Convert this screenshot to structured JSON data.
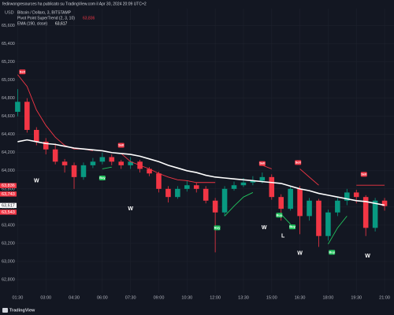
{
  "header": "fedirwongresources ha publicato su TradingView.com il Apr 30, 2024 20:09 UTC+2",
  "footer": "TradingView",
  "chart_data": {
    "type": "candlestick",
    "title": "Bitcoin / Dollaro, 3, BITSTAMP",
    "y_unit": "USD",
    "x": [
      1.5,
      2,
      2.5,
      3,
      3.5,
      4,
      4.5,
      5,
      5.5,
      6,
      6.5,
      7,
      7.5,
      8,
      8.5,
      9,
      9.5,
      10,
      10.5,
      11,
      11.5,
      12,
      12.5,
      13,
      13.5,
      14,
      14.5,
      15,
      15.5,
      16,
      16.5,
      17,
      17.5,
      18,
      18.5,
      19,
      19.5,
      20,
      20.5,
      21
    ],
    "open": [
      64650,
      64760,
      64450,
      64320,
      64235,
      64100,
      64060,
      63930,
      64060,
      64100,
      64150,
      64100,
      64060,
      64100,
      64020,
      63970,
      63800,
      63710,
      63800,
      63840,
      63800,
      63670,
      63540,
      63800,
      63840,
      63870,
      63890,
      63930,
      63710,
      63580,
      63800,
      63500,
      63670,
      63280,
      63540,
      63670,
      63760,
      63710,
      63370,
      63670
    ],
    "high": [
      64900,
      64800,
      64480,
      64360,
      64300,
      64130,
      64090,
      64090,
      64140,
      64200,
      64180,
      64120,
      64150,
      64120,
      64040,
      63990,
      63830,
      63830,
      63890,
      63870,
      63830,
      63700,
      63830,
      63880,
      63920,
      63940,
      63980,
      63960,
      63740,
      63830,
      63830,
      63700,
      63690,
      63570,
      63700,
      63800,
      63790,
      63730,
      63700,
      63700
    ],
    "low": [
      64600,
      64420,
      64280,
      64180,
      64070,
      63980,
      63800,
      63900,
      64030,
      64070,
      64060,
      64020,
      64020,
      63980,
      63940,
      63760,
      63650,
      63690,
      63770,
      63760,
      63640,
      63100,
      63500,
      63780,
      63820,
      63840,
      63860,
      63680,
      63450,
      63560,
      63300,
      63450,
      63160,
      63230,
      63500,
      63620,
      63640,
      63280,
      63330,
      63560
    ],
    "close": [
      64760,
      64450,
      64320,
      64235,
      64100,
      64060,
      63930,
      64060,
      64100,
      64150,
      64100,
      64060,
      64100,
      64020,
      63970,
      63800,
      63710,
      63800,
      63840,
      63800,
      63670,
      63540,
      63800,
      63840,
      63870,
      63890,
      63930,
      63710,
      63580,
      63800,
      63500,
      63670,
      63280,
      63540,
      63670,
      63760,
      63710,
      63370,
      63670,
      63610
    ],
    "up_color": "#089981",
    "down_color": "#f23645",
    "series": [
      {
        "name": "Pivot Point SuperTrend (2, 3, 10)",
        "value_label": "63,836",
        "colors": [
          "#f23645",
          "#22c55e"
        ],
        "upper": [
          65060,
          64930,
          64670,
          64500,
          64370,
          64280,
          64240,
          64240,
          64220,
          null,
          null,
          64190,
          64100,
          64060,
          64020,
          63970,
          63930,
          63900,
          63890,
          63870,
          63870,
          63870,
          null,
          null,
          null,
          null,
          64060,
          64020,
          null,
          null,
          64020,
          63930,
          63840,
          null,
          null,
          null,
          63840,
          63840,
          63840,
          63840
        ],
        "lower": [
          null,
          null,
          null,
          null,
          null,
          null,
          null,
          null,
          null,
          64020,
          64040,
          null,
          null,
          null,
          null,
          null,
          null,
          null,
          null,
          null,
          null,
          null,
          63500,
          63610,
          63710,
          63760,
          null,
          null,
          63520,
          63410,
          null,
          null,
          null,
          63190,
          63370,
          63500,
          null,
          null,
          null,
          null
        ]
      },
      {
        "name": "EMA (190, close)",
        "value_label": "63,617",
        "color": "#ffffff",
        "values": [
          64320,
          64340,
          64320,
          64300,
          64290,
          64270,
          64250,
          64240,
          64230,
          64220,
          64200,
          64190,
          64180,
          64160,
          64130,
          64100,
          64060,
          64030,
          64000,
          63980,
          63950,
          63930,
          63920,
          63910,
          63900,
          63890,
          63880,
          63870,
          63860,
          63830,
          63800,
          63780,
          63750,
          63730,
          63710,
          63690,
          63670,
          63660,
          63640,
          63620
        ]
      }
    ],
    "signals": [
      {
        "text": "Sell",
        "x": 1.75,
        "y": 65090,
        "color": "#f23645"
      },
      {
        "text": "Sell",
        "x": 7.0,
        "y": 64280,
        "color": "#f23645"
      },
      {
        "text": "Sell",
        "x": 14.5,
        "y": 64080,
        "color": "#f23645"
      },
      {
        "text": "Sell",
        "x": 16.4,
        "y": 64090,
        "color": "#f23645"
      },
      {
        "text": "Sell",
        "x": 19.9,
        "y": 63960,
        "color": "#f23645"
      },
      {
        "text": "Buy",
        "x": 6.0,
        "y": 63920,
        "color": "#22c55e"
      },
      {
        "text": "Buy",
        "x": 12.1,
        "y": 63370,
        "color": "#22c55e"
      },
      {
        "text": "Buy",
        "x": 15.4,
        "y": 63510,
        "color": "#22c55e"
      },
      {
        "text": "Buy",
        "x": 16.1,
        "y": 63380,
        "color": "#22c55e"
      },
      {
        "text": "Buy",
        "x": 18.2,
        "y": 63100,
        "color": "#22c55e"
      }
    ],
    "annotations": [
      {
        "text": "W",
        "x": 2.5,
        "y": 63890
      },
      {
        "text": "W",
        "x": 7.5,
        "y": 63580
      },
      {
        "text": "W",
        "x": 14.6,
        "y": 63370
      },
      {
        "text": "L",
        "x": 15.6,
        "y": 63280
      },
      {
        "text": "W",
        "x": 16.5,
        "y": 63090
      },
      {
        "text": "W",
        "x": 20.1,
        "y": 63060
      }
    ],
    "price_labels": [
      {
        "value": 63836,
        "label": "63,836",
        "color": "#f23645"
      },
      {
        "value": 63743,
        "label": "63,743",
        "color": "#f23645"
      },
      {
        "value": 63617,
        "label": "63,617",
        "color": "#ffffff"
      },
      {
        "value": 63543,
        "label": "63,543",
        "color": "#f23645"
      }
    ],
    "xlim": [
      1.4,
      21.5
    ],
    "ylim": [
      62600,
      65900
    ],
    "xticks": [
      {
        "value": 1.5,
        "label": "01:30"
      },
      {
        "value": 3,
        "label": "03:00"
      },
      {
        "value": 4.5,
        "label": "04:30"
      },
      {
        "value": 6,
        "label": "06:00"
      },
      {
        "value": 7.5,
        "label": "07:30"
      },
      {
        "value": 9,
        "label": "09:00"
      },
      {
        "value": 10.5,
        "label": "10:30"
      },
      {
        "value": 12,
        "label": "12:00"
      },
      {
        "value": 13.5,
        "label": "13:30"
      },
      {
        "value": 15,
        "label": "15:00"
      },
      {
        "value": 16.5,
        "label": "16:30"
      },
      {
        "value": 18,
        "label": "18:00"
      },
      {
        "value": 19.5,
        "label": "19:30"
      },
      {
        "value": 21,
        "label": "21:00"
      }
    ],
    "yticks": [
      {
        "value": 62800,
        "label": "62,800"
      },
      {
        "value": 63000,
        "label": "63,000"
      },
      {
        "value": 63200,
        "label": "63,200"
      },
      {
        "value": 63400,
        "label": "63,400"
      },
      {
        "value": 63600,
        "label": "63,600"
      },
      {
        "value": 63800,
        "label": "63,800"
      },
      {
        "value": 64000,
        "label": "64,000"
      },
      {
        "value": 64200,
        "label": "64,200"
      },
      {
        "value": 64400,
        "label": "64,400"
      },
      {
        "value": 64600,
        "label": "64,600"
      },
      {
        "value": 64800,
        "label": "64,800"
      },
      {
        "value": 65000,
        "label": "65,000"
      },
      {
        "value": 65200,
        "label": "65,200"
      },
      {
        "value": 65400,
        "label": "65,400"
      },
      {
        "value": 65600,
        "label": "65,600"
      }
    ],
    "grid": true,
    "grid_color": "#1e222d"
  }
}
